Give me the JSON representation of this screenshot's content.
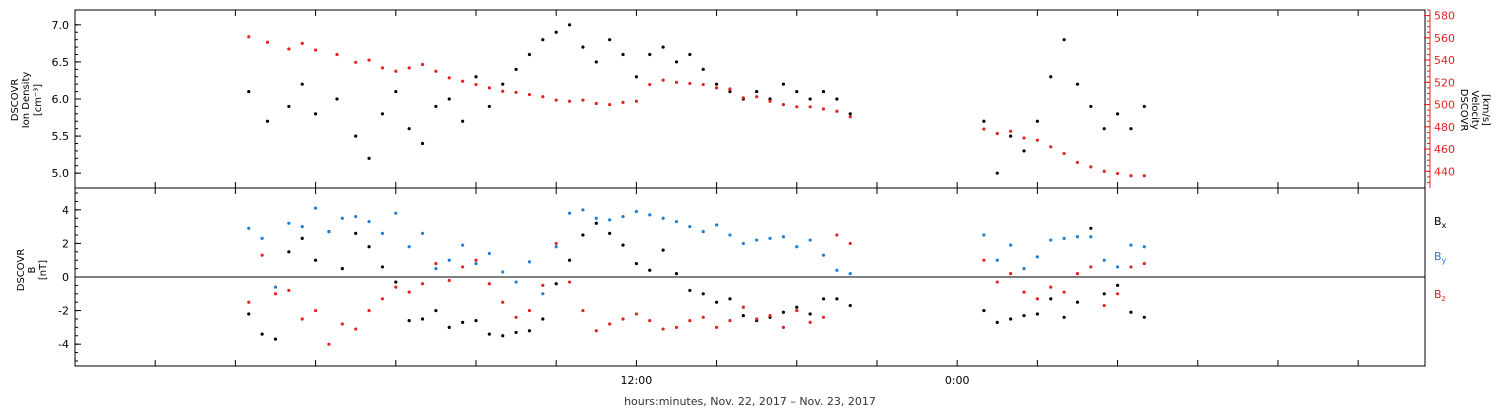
{
  "chart_data": [
    {
      "type": "scatter",
      "panel": "ion-density-velocity",
      "ylabel_left": [
        "DSCOVR",
        "Ion Density",
        "[cm⁻³]"
      ],
      "ylabel_right": [
        "DSCOVR",
        "Velocity",
        "[km/s]"
      ],
      "ylim": [
        4.8,
        7.2
      ],
      "yticks": [
        5.0,
        5.5,
        6.0,
        6.5,
        7.0
      ],
      "ylim_right": [
        425,
        585
      ],
      "yticks_right": [
        440,
        460,
        480,
        500,
        520,
        540,
        560,
        580
      ],
      "series": [
        {
          "name": "",
          "axis": "left",
          "color": "#000000",
          "x": [
            -14.5,
            -13.8,
            -13.0,
            -12.5,
            -12.0,
            -11.2,
            -10.5,
            -10.0,
            -9.5,
            -9.0,
            -8.5,
            -8.0,
            -7.5,
            -7.0,
            -6.5,
            -6.0,
            -5.5,
            -5.0,
            -4.5,
            -4.0,
            -3.5,
            -3.0,
            -2.5,
            -2.0,
            -1.5,
            -1.0,
            -0.5,
            0.0,
            0.5,
            1.0,
            1.5,
            2.0,
            2.5,
            3.0,
            3.5,
            4.0,
            4.5,
            5.0,
            5.5,
            6.0,
            6.5,
            7.0,
            7.5,
            8.0,
            13.0,
            13.5,
            14.0,
            14.5,
            15.0,
            15.5,
            16.0,
            16.5,
            17.0,
            17.5,
            18.0,
            18.5,
            19.0
          ],
          "y": [
            6.1,
            5.7,
            5.9,
            6.2,
            5.8,
            6.0,
            5.5,
            5.2,
            5.8,
            6.1,
            5.6,
            5.4,
            5.9,
            6.0,
            5.7,
            6.3,
            5.9,
            6.2,
            6.4,
            6.6,
            6.8,
            6.9,
            7.0,
            6.7,
            6.5,
            6.8,
            6.6,
            6.3,
            6.6,
            6.7,
            6.5,
            6.6,
            6.4,
            6.2,
            6.1,
            6.0,
            6.1,
            6.0,
            6.2,
            6.1,
            6.0,
            6.1,
            6.0,
            5.8,
            5.7,
            5.0,
            5.5,
            5.3,
            5.7,
            6.3,
            6.8,
            6.2,
            5.9,
            5.6,
            5.8,
            5.6,
            5.9
          ]
        },
        {
          "name": "",
          "axis": "right",
          "color": "#e32322",
          "x": [
            -14.5,
            -13.8,
            -13.0,
            -12.5,
            -12.0,
            -11.2,
            -10.5,
            -10.0,
            -9.5,
            -9.0,
            -8.5,
            -8.0,
            -7.5,
            -7.0,
            -6.5,
            -6.0,
            -5.5,
            -5.0,
            -4.5,
            -4.0,
            -3.5,
            -3.0,
            -2.5,
            -2.0,
            -1.5,
            -1.0,
            -0.5,
            0.0,
            0.5,
            1.0,
            1.5,
            2.0,
            2.5,
            3.0,
            3.5,
            4.0,
            4.5,
            5.0,
            5.5,
            6.0,
            6.5,
            7.0,
            7.5,
            8.0,
            13.0,
            13.5,
            14.0,
            14.5,
            15.0,
            15.5,
            16.0,
            16.5,
            17.0,
            17.5,
            18.0,
            18.5,
            19.0
          ],
          "y": [
            561,
            556,
            550,
            555,
            549,
            545,
            538,
            540,
            533,
            530,
            533,
            536,
            530,
            524,
            521,
            518,
            515,
            512,
            511,
            509,
            507,
            504,
            503,
            504,
            501,
            500,
            502,
            503,
            518,
            522,
            520,
            519,
            518,
            515,
            514,
            506,
            507,
            503,
            500,
            498,
            498,
            496,
            494,
            489,
            478,
            474,
            476,
            470,
            468,
            462,
            456,
            448,
            444,
            440,
            438,
            436,
            436
          ]
        }
      ]
    },
    {
      "type": "scatter",
      "panel": "magnetic-field",
      "ylabel": [
        "DSCOVR",
        "B",
        "[nT]"
      ],
      "ylim": [
        -5.3,
        5.3
      ],
      "yticks": [
        -4,
        -2,
        0,
        2,
        4
      ],
      "zero_line": true,
      "series": [
        {
          "name": "Bx",
          "color": "#000000",
          "x": [
            -14.5,
            -14.0,
            -13.5,
            -13.0,
            -12.5,
            -12.0,
            -11.5,
            -11.0,
            -10.5,
            -10.0,
            -9.5,
            -9.0,
            -8.5,
            -8.0,
            -7.5,
            -7.0,
            -6.5,
            -6.0,
            -5.5,
            -5.0,
            -4.5,
            -4.0,
            -3.5,
            -3.0,
            -2.5,
            -2.0,
            -1.5,
            -1.0,
            -0.5,
            0.0,
            0.5,
            1.0,
            1.5,
            2.0,
            2.5,
            3.0,
            3.5,
            4.0,
            4.5,
            5.0,
            5.5,
            6.0,
            6.5,
            7.0,
            7.5,
            8.0,
            13.0,
            13.5,
            14.0,
            14.5,
            15.0,
            15.5,
            16.0,
            16.5,
            17.0,
            17.5,
            18.0,
            18.5,
            19.0
          ],
          "y": [
            -2.2,
            -3.4,
            -3.7,
            1.5,
            2.3,
            1.0,
            2.7,
            0.5,
            2.6,
            1.8,
            0.6,
            -0.3,
            -2.6,
            -2.5,
            -2.0,
            -3.0,
            -2.7,
            -2.6,
            -3.4,
            -3.5,
            -3.3,
            -3.2,
            -2.5,
            -0.4,
            1.0,
            2.5,
            3.2,
            2.6,
            1.9,
            0.8,
            0.4,
            1.6,
            0.2,
            -0.8,
            -1.0,
            -1.5,
            -1.3,
            -2.3,
            -2.6,
            -2.4,
            -2.1,
            -1.8,
            -2.2,
            -1.3,
            -1.3,
            -1.7,
            -2.0,
            -2.7,
            -2.5,
            -2.3,
            -2.2,
            -1.3,
            -2.4,
            -1.5,
            2.9,
            -1.0,
            -0.5,
            -2.1,
            -2.4
          ]
        },
        {
          "name": "By",
          "color": "#1f7fd6",
          "x": [
            -14.5,
            -14.0,
            -13.5,
            -13.0,
            -12.5,
            -12.0,
            -11.5,
            -11.0,
            -10.5,
            -10.0,
            -9.5,
            -9.0,
            -8.5,
            -8.0,
            -7.5,
            -7.0,
            -6.5,
            -6.0,
            -5.5,
            -5.0,
            -4.5,
            -4.0,
            -3.5,
            -3.0,
            -2.5,
            -2.0,
            -1.5,
            -1.0,
            -0.5,
            0.0,
            0.5,
            1.0,
            1.5,
            2.0,
            2.5,
            3.0,
            3.5,
            4.0,
            4.5,
            5.0,
            5.5,
            6.0,
            6.5,
            7.0,
            7.5,
            8.0,
            13.0,
            13.5,
            14.0,
            14.5,
            15.0,
            15.5,
            16.0,
            16.5,
            17.0,
            17.5,
            18.0,
            18.5,
            19.0
          ],
          "y": [
            2.9,
            2.3,
            -0.6,
            3.2,
            3.0,
            4.1,
            2.7,
            3.5,
            3.6,
            3.3,
            2.6,
            3.8,
            1.8,
            2.6,
            0.5,
            1.0,
            1.9,
            0.8,
            1.4,
            0.3,
            -0.3,
            0.9,
            -1.0,
            1.8,
            3.8,
            4.0,
            3.5,
            3.4,
            3.6,
            3.9,
            3.7,
            3.5,
            3.3,
            3.0,
            2.7,
            3.1,
            2.5,
            2.0,
            2.2,
            2.3,
            2.4,
            1.8,
            2.2,
            1.3,
            0.4,
            0.2,
            2.5,
            1.0,
            1.9,
            0.5,
            1.2,
            2.2,
            2.3,
            2.4,
            2.4,
            1.0,
            0.6,
            1.9,
            1.8
          ]
        },
        {
          "name": "Bz",
          "color": "#e32322",
          "x": [
            -14.5,
            -14.0,
            -13.5,
            -13.0,
            -12.5,
            -12.0,
            -11.5,
            -11.0,
            -10.5,
            -10.0,
            -9.5,
            -9.0,
            -8.5,
            -8.0,
            -7.5,
            -7.0,
            -6.5,
            -6.0,
            -5.5,
            -5.0,
            -4.5,
            -4.0,
            -3.5,
            -3.0,
            -2.5,
            -2.0,
            -1.5,
            -1.0,
            -0.5,
            0.0,
            0.5,
            1.0,
            1.5,
            2.0,
            2.5,
            3.0,
            3.5,
            4.0,
            4.5,
            5.0,
            5.5,
            6.0,
            6.5,
            7.0,
            7.5,
            8.0,
            13.0,
            13.5,
            14.0,
            14.5,
            15.0,
            15.5,
            16.0,
            16.5,
            17.0,
            17.5,
            18.0,
            18.5,
            19.0
          ],
          "y": [
            -1.5,
            1.3,
            -1.0,
            -0.8,
            -2.5,
            -2.0,
            -4.0,
            -2.8,
            -3.1,
            -2.0,
            -1.3,
            -0.6,
            -0.9,
            -0.4,
            0.8,
            -0.2,
            0.6,
            1.0,
            -0.4,
            -1.5,
            -2.4,
            -2.0,
            -0.5,
            2.0,
            -0.3,
            -2.0,
            -3.2,
            -2.8,
            -2.5,
            -2.2,
            -2.6,
            -3.1,
            -3.0,
            -2.6,
            -2.4,
            -3.0,
            -2.6,
            -1.8,
            -2.5,
            -2.3,
            -3.0,
            -2.0,
            -2.7,
            -2.4,
            2.5,
            2.0,
            1.0,
            -0.3,
            0.2,
            -0.9,
            -1.3,
            -0.6,
            -0.9,
            0.2,
            0.6,
            -1.7,
            -1.0,
            0.6,
            0.8
          ]
        }
      ]
    }
  ],
  "x_axis": {
    "xlim": [
      -21.0,
      29.5
    ],
    "ticks": [
      -18,
      -15,
      -12,
      -9,
      -6,
      -3,
      0,
      3,
      6,
      9,
      12,
      15,
      18,
      21,
      24,
      27
    ],
    "tick_labels": [
      {
        "x": 0,
        "label": "12:00"
      },
      {
        "x": 12,
        "label": "0:00"
      }
    ],
    "xlabel": "hours:minutes, Nov. 22, 2017 – Nov. 23, 2017"
  },
  "legend": [
    {
      "base": "B",
      "sub": "x",
      "color": "#000000"
    },
    {
      "base": "B",
      "sub": "y",
      "color": "#1f7fd6"
    },
    {
      "base": "B",
      "sub": "z",
      "color": "#e32322"
    }
  ]
}
